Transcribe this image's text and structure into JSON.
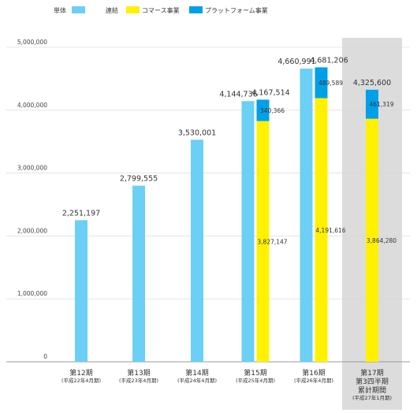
{
  "chart_data": {
    "type": "bar",
    "title": "",
    "xlabel": "",
    "ylabel": "",
    "ylim": [
      0,
      5000000
    ],
    "y_ticks": [
      "0",
      "1,000,000",
      "2,000,000",
      "3,000,000",
      "4,000,000",
      "5,000,000"
    ],
    "grid": true,
    "legend_position": "top-left",
    "legend": {
      "standalone": "単体",
      "consolidated": "連結",
      "commerce": "コマース事業",
      "platform": "プラットフォーム事業"
    },
    "colors": {
      "standalone": "#6ccff6",
      "commerce": "#fff100",
      "platform": "#00a0e9",
      "highlight": "#dcdcdc",
      "axis": "#999999"
    },
    "categories": [
      {
        "label_lines": [
          "第12期"
        ],
        "period": "(平成22年4月期)",
        "highlight": false,
        "standalone": 2251197,
        "standalone_label": "2,251,197",
        "consolidated": null
      },
      {
        "label_lines": [
          "第13期"
        ],
        "period": "(平成23年4月期)",
        "highlight": false,
        "standalone": 2799555,
        "standalone_label": "2,799,555",
        "consolidated": null
      },
      {
        "label_lines": [
          "第14期"
        ],
        "period": "(平成24年4月期)",
        "highlight": false,
        "standalone": 3530001,
        "standalone_label": "3,530,001",
        "consolidated": null
      },
      {
        "label_lines": [
          "第15期"
        ],
        "period": "(平成25年4月期)",
        "highlight": false,
        "standalone": 4144736,
        "standalone_label": "4,144,736",
        "consolidated": {
          "total_label": "4,167,514",
          "commerce": 3827147,
          "commerce_label": "3,827,147",
          "platform": 340366,
          "platform_label": "340,366"
        }
      },
      {
        "label_lines": [
          "第16期"
        ],
        "period": "(平成26年4月期)",
        "highlight": false,
        "standalone": 4660991,
        "standalone_label": "4,660,991",
        "consolidated": {
          "total_label": "4,681,206",
          "commerce": 4191616,
          "commerce_label": "4,191,616",
          "platform": 489589,
          "platform_label": "489,589"
        }
      },
      {
        "label_lines": [
          "第17期",
          "第3四半期",
          "累計期間"
        ],
        "period": "(平成27年1月期)",
        "highlight": true,
        "standalone": null,
        "standalone_label": null,
        "consolidated": {
          "total_label": "4,325,600",
          "commerce": 3864280,
          "commerce_label": "3,864,280",
          "platform": 461319,
          "platform_label": "461,319"
        }
      }
    ]
  }
}
